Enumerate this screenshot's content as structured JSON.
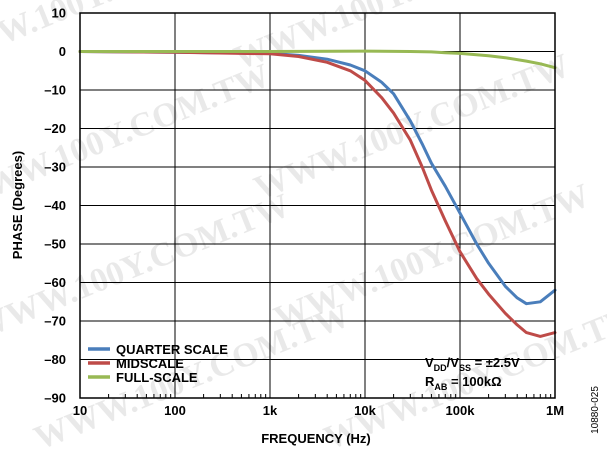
{
  "chart_data": {
    "type": "line",
    "title": "",
    "xlabel": "FREQUENCY (Hz)",
    "ylabel": "PHASE (Degrees)",
    "x_scale": "log",
    "xlim": [
      10,
      1000000
    ],
    "ylim": [
      -90,
      10
    ],
    "grid": true,
    "x_ticks": [
      10,
      100,
      1000,
      10000,
      100000,
      1000000
    ],
    "x_tick_labels": [
      "10",
      "100",
      "1k",
      "10k",
      "100k",
      "1M"
    ],
    "y_ticks": [
      10,
      0,
      -10,
      -20,
      -30,
      -40,
      -50,
      -60,
      -70,
      -80,
      -90
    ],
    "y_tick_labels": [
      "10",
      "0",
      "–10",
      "–20",
      "–30",
      "–40",
      "–50",
      "–60",
      "–70",
      "–80",
      "–90"
    ],
    "legend_position": "bottom-left",
    "series": [
      {
        "name": "QUARTER SCALE",
        "color": "#4a7ebb",
        "x": [
          10,
          100,
          1000,
          2000,
          4000,
          7000,
          10000,
          15000,
          20000,
          30000,
          40000,
          50000,
          70000,
          100000,
          150000,
          200000,
          300000,
          400000,
          500000,
          700000,
          1000000
        ],
        "y": [
          0,
          -0.2,
          -0.5,
          -1,
          -2,
          -3.5,
          -5,
          -8,
          -11,
          -18,
          -24,
          -29,
          -35,
          -42,
          -50,
          -55,
          -61,
          -64,
          -65.5,
          -65,
          -62
        ]
      },
      {
        "name": "MIDSCALE",
        "color": "#be4b48",
        "x": [
          10,
          100,
          1000,
          2000,
          4000,
          7000,
          10000,
          15000,
          20000,
          30000,
          40000,
          50000,
          70000,
          100000,
          150000,
          200000,
          300000,
          400000,
          500000,
          700000,
          1000000
        ],
        "y": [
          0,
          -0.2,
          -0.6,
          -1.3,
          -2.8,
          -5,
          -7.5,
          -12,
          -16,
          -23,
          -30,
          -36,
          -44,
          -52,
          -59,
          -63,
          -68,
          -71,
          -73,
          -74,
          -73
        ]
      },
      {
        "name": "FULL-SCALE",
        "color": "#98b954",
        "x": [
          10,
          100,
          1000,
          10000,
          30000,
          50000,
          70000,
          100000,
          200000,
          300000,
          500000,
          700000,
          1000000
        ],
        "y": [
          0,
          0,
          0,
          0.1,
          0,
          -0.1,
          -0.3,
          -0.5,
          -1.1,
          -1.6,
          -2.5,
          -3.2,
          -4.2
        ]
      }
    ],
    "annotations": {
      "conditions_line1": {
        "main1": "V",
        "sub1": "DD",
        "main2": "/V",
        "sub2": "SS",
        "main3": " = ±2.5V"
      },
      "conditions_line2": {
        "main1": "R",
        "sub1": "AB",
        "main2": " = 100kΩ"
      },
      "figure_id": "10880-025"
    },
    "watermark_text": "WWW.100Y.COM.TW"
  }
}
